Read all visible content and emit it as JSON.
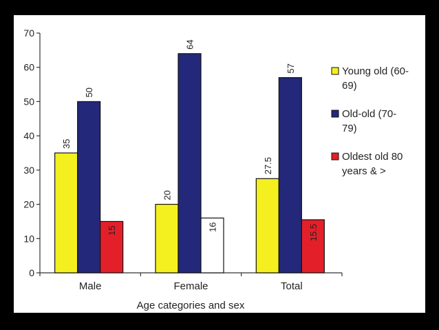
{
  "chart_data": {
    "type": "bar",
    "categories": [
      "Male",
      "Female",
      "Total"
    ],
    "xlabel": "Age categories and sex",
    "ylabel": "",
    "ylim": [
      0,
      70
    ],
    "yticks": [
      0,
      10,
      20,
      30,
      40,
      50,
      60,
      70
    ],
    "grid": false,
    "legend": "right",
    "series": [
      {
        "name": "Young old (60-69)",
        "legend_lines": [
          "Young old (60-",
          "69)"
        ],
        "color": "#f4f01f",
        "values": [
          35,
          20,
          27.5
        ],
        "value_labels": [
          "35",
          "20",
          "27.5"
        ]
      },
      {
        "name": "Old-old (70-79)",
        "legend_lines": [
          "Old-old (70-",
          "79)"
        ],
        "color": "#23287a",
        "values": [
          50,
          64,
          57
        ],
        "value_labels": [
          "50",
          "64",
          "57"
        ]
      },
      {
        "name": "Oldest old 80 years & >",
        "legend_lines": [
          "Oldest old 80",
          "years & >"
        ],
        "color": "#e3202a",
        "values": [
          15,
          16,
          15.5
        ],
        "value_labels": [
          "15",
          "16",
          "15.5"
        ],
        "hollow": [
          false,
          true,
          false
        ]
      }
    ]
  }
}
